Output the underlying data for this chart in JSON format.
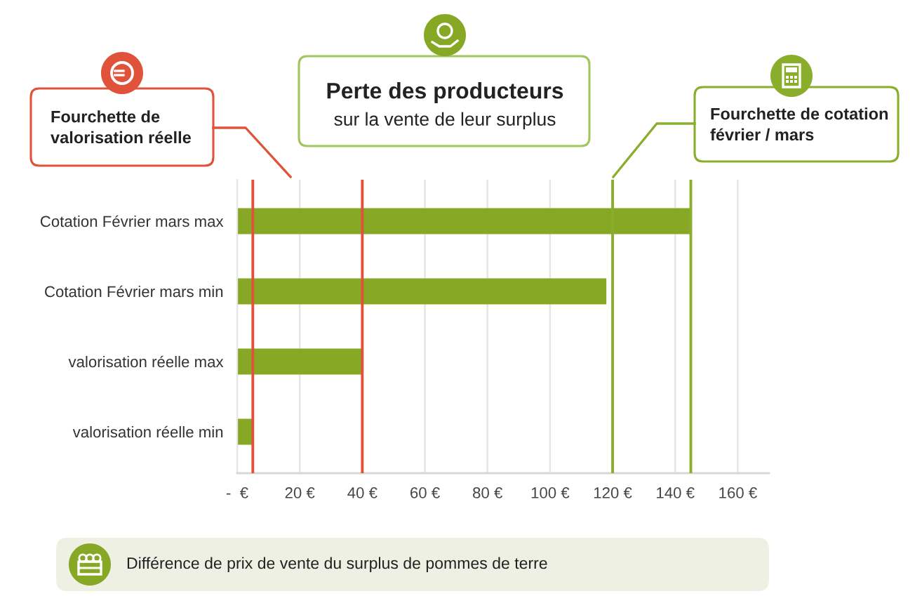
{
  "chart_data": {
    "type": "bar",
    "orientation": "horizontal",
    "title": "Perte des producteurs",
    "subtitle": "sur la vente de leur surplus",
    "xlabel": "Différence de prix de vente du surplus de pommes de terre",
    "categories": [
      "Cotation Février mars max",
      "Cotation Février mars min",
      "valorisation réelle max",
      "valorisation réelle min"
    ],
    "values": [
      145,
      118,
      40,
      5
    ],
    "color": "#86a825",
    "xlim": [
      0,
      170
    ],
    "xticks": [
      {
        "value": 0,
        "label": "-  €"
      },
      {
        "value": 20,
        "label": "20 €"
      },
      {
        "value": 40,
        "label": "40 €"
      },
      {
        "value": 60,
        "label": "60 €"
      },
      {
        "value": 80,
        "label": "80 €"
      },
      {
        "value": 100,
        "label": "100 €"
      },
      {
        "value": 120,
        "label": "120 €"
      },
      {
        "value": 140,
        "label": "140 €"
      },
      {
        "value": 160,
        "label": "160 €"
      }
    ],
    "grid": "x",
    "ref_lines": [
      {
        "axis": "x",
        "value": 5,
        "color": "#e0533a"
      },
      {
        "axis": "x",
        "value": 40,
        "color": "#e0533a"
      },
      {
        "axis": "x",
        "value": 120,
        "color": "#8aae2c"
      },
      {
        "axis": "x",
        "value": 145,
        "color": "#8aae2c"
      }
    ],
    "annotations": [
      "Fourchette de valorisation réelle",
      "Fourchette de cotation février / mars"
    ]
  }
}
